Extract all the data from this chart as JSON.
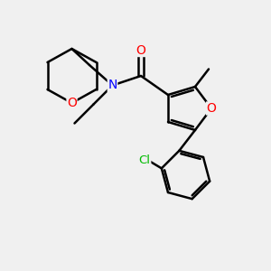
{
  "bg_color": "#f0f0f0",
  "atom_colors": {
    "O": "#ff0000",
    "N": "#0000ff",
    "Cl": "#00bb00",
    "C": "#000000"
  },
  "bond_color": "#000000",
  "bond_width": 1.8,
  "figsize": [
    3.0,
    3.0
  ],
  "dpi": 100
}
